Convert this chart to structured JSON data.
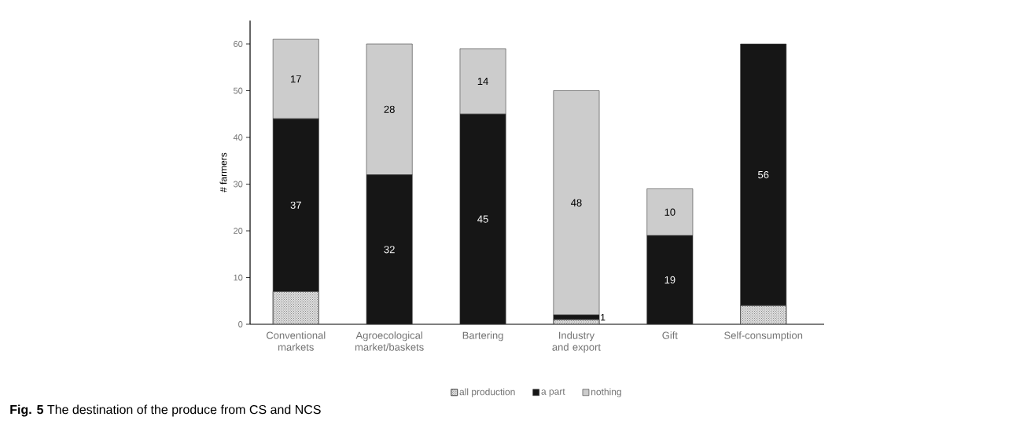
{
  "chart_data": {
    "type": "bar",
    "stacked": true,
    "ylabel": "# farmers",
    "categories": [
      "Conventional markets",
      "Agroecological market/baskets",
      "Bartering",
      "Industry and export",
      "Gift",
      "Self-consumption"
    ],
    "series": [
      {
        "name": "all production",
        "color": "#e0e0e0",
        "values": [
          7,
          0,
          0,
          1,
          0,
          4
        ]
      },
      {
        "name": "a part",
        "color": "#161616",
        "values": [
          37,
          32,
          45,
          1,
          19,
          56
        ],
        "value_labels": [
          "37",
          "32",
          "45",
          "1",
          "19",
          "56"
        ]
      },
      {
        "name": "nothing",
        "color": "#cccccc",
        "values": [
          17,
          28,
          14,
          48,
          10,
          0
        ],
        "value_labels": [
          "17",
          "28",
          "14",
          "48",
          "10",
          null
        ]
      }
    ],
    "ylim": [
      0,
      65
    ],
    "yticks": [
      0,
      10,
      20,
      30,
      40,
      50,
      60
    ],
    "legend": "bottom",
    "annotations": [
      "**Fig. 5** The destination of the produce from CS and NCS"
    ]
  }
}
